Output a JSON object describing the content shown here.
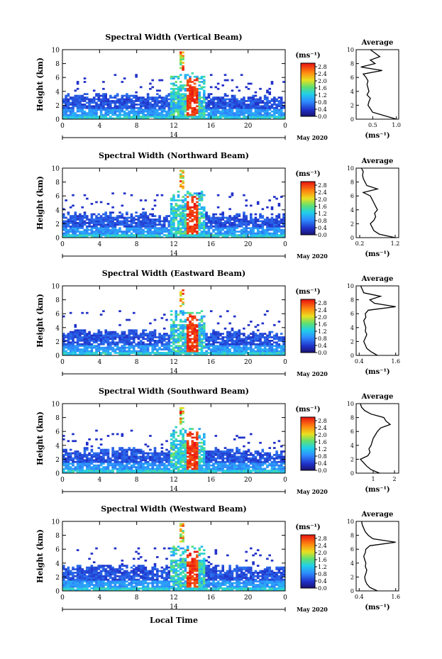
{
  "figure": {
    "xlabel": "Local Time",
    "date_label": "May 2020",
    "day_label": "14",
    "avg_title": "Average",
    "avg_xlabel": "(ms⁻¹)",
    "cbar_unit": "(ms⁻¹)"
  },
  "chart_data": [
    {
      "type": "heatmap",
      "title": "Spectral Width (Vertical Beam)",
      "ylabel": "Height (km)",
      "xlabel": "Local Time",
      "x_ticks": [
        "0",
        "4",
        "8",
        "12",
        "16",
        "20",
        "0"
      ],
      "y_ticks": [
        "0",
        "2",
        "4",
        "6",
        "8",
        "10"
      ],
      "xlim": [
        0,
        24
      ],
      "ylim": [
        0,
        10
      ],
      "colorbar": {
        "label": "(ms⁻¹)",
        "ticks": [
          "0.0",
          "0.4",
          "0.8",
          "1.2",
          "1.6",
          "2.0",
          "2.4",
          "2.8"
        ],
        "range": [
          0,
          3.0
        ]
      },
      "profile": {
        "title": "Average",
        "xlabel": "(ms⁻¹)",
        "x_ticks": [
          "0.5",
          "1.0"
        ],
        "x_tick_values": [
          0.5,
          1.0
        ],
        "xlim": [
          0.15,
          1.05
        ],
        "y_ticks": [
          "0",
          "2",
          "4",
          "6",
          "8",
          "10"
        ],
        "heights": [
          0.0,
          0.5,
          1.0,
          1.5,
          2.0,
          2.5,
          3.0,
          3.5,
          4.0,
          4.5,
          5.0,
          5.5,
          6.0,
          6.5,
          7.0,
          7.5,
          8.0,
          8.5,
          9.0,
          9.5,
          10.0
        ],
        "values": [
          1.0,
          0.75,
          0.5,
          0.45,
          0.4,
          0.42,
          0.45,
          0.38,
          0.42,
          0.4,
          0.38,
          0.4,
          0.36,
          0.3,
          0.7,
          0.25,
          0.55,
          0.45,
          0.65,
          0.55,
          0.45
        ]
      }
    },
    {
      "type": "heatmap",
      "title": "Spectral Width (Northward Beam)",
      "ylabel": "Height (km)",
      "xlabel": "Local Time",
      "x_ticks": [
        "0",
        "4",
        "8",
        "12",
        "16",
        "20",
        "0"
      ],
      "y_ticks": [
        "0",
        "2",
        "4",
        "6",
        "8",
        "10"
      ],
      "xlim": [
        0,
        24
      ],
      "ylim": [
        0,
        10
      ],
      "colorbar": {
        "label": "(ms⁻¹)",
        "ticks": [
          "0.0",
          "0.4",
          "0.8",
          "1.2",
          "1.6",
          "2.0",
          "2.4",
          "2.8"
        ],
        "range": [
          0,
          3.0
        ]
      },
      "profile": {
        "title": "Average",
        "xlabel": "(ms⁻¹)",
        "x_ticks": [
          "0.2",
          "1.2"
        ],
        "x_tick_values": [
          0.2,
          1.2
        ],
        "xlim": [
          0.1,
          1.3
        ],
        "y_ticks": [
          "0",
          "2",
          "4",
          "6",
          "8",
          "10"
        ],
        "heights": [
          0.0,
          0.5,
          1.0,
          1.5,
          2.0,
          2.5,
          3.0,
          3.5,
          4.0,
          4.5,
          5.0,
          5.5,
          6.0,
          6.5,
          7.0,
          7.5,
          8.0,
          8.5,
          9.0,
          9.5,
          10.0
        ],
        "values": [
          1.2,
          0.75,
          0.6,
          0.55,
          0.5,
          0.6,
          0.65,
          0.62,
          0.7,
          0.65,
          0.6,
          0.55,
          0.5,
          0.3,
          0.7,
          0.4,
          0.35,
          0.3,
          0.28,
          0.3,
          0.25
        ]
      }
    },
    {
      "type": "heatmap",
      "title": "Spectral Width (Eastward Beam)",
      "ylabel": "Height (km)",
      "xlabel": "Local Time",
      "x_ticks": [
        "0",
        "4",
        "8",
        "12",
        "16",
        "20",
        "0"
      ],
      "y_ticks": [
        "0",
        "2",
        "4",
        "6",
        "8",
        "10"
      ],
      "xlim": [
        0,
        24
      ],
      "ylim": [
        0,
        10
      ],
      "colorbar": {
        "label": "(ms⁻¹)",
        "ticks": [
          "0.0",
          "0.4",
          "0.8",
          "1.2",
          "1.6",
          "2.0",
          "2.4",
          "2.8"
        ],
        "range": [
          0,
          3.0
        ]
      },
      "profile": {
        "title": "Average",
        "xlabel": "(ms⁻¹)",
        "x_ticks": [
          "0.4",
          "1.6"
        ],
        "x_tick_values": [
          0.4,
          1.6
        ],
        "xlim": [
          0.3,
          1.7
        ],
        "y_ticks": [
          "0",
          "2",
          "4",
          "6",
          "8",
          "10"
        ],
        "heights": [
          0.0,
          0.5,
          1.0,
          1.5,
          2.0,
          2.5,
          3.0,
          3.5,
          4.0,
          4.5,
          5.0,
          5.5,
          6.0,
          6.5,
          7.0,
          7.5,
          8.0,
          8.5,
          9.0,
          9.5,
          10.0
        ],
        "values": [
          1.0,
          0.8,
          0.65,
          0.6,
          0.55,
          0.6,
          0.65,
          0.6,
          0.62,
          0.58,
          0.55,
          0.62,
          0.6,
          0.7,
          1.6,
          0.9,
          0.75,
          1.1,
          0.55,
          0.5,
          0.45
        ]
      }
    },
    {
      "type": "heatmap",
      "title": "Spectral Width (Southward Beam)",
      "ylabel": "Height (km)",
      "xlabel": "Local Time",
      "x_ticks": [
        "0",
        "4",
        "8",
        "12",
        "16",
        "20",
        "0"
      ],
      "y_ticks": [
        "0",
        "2",
        "4",
        "6",
        "8",
        "10"
      ],
      "xlim": [
        0,
        24
      ],
      "ylim": [
        0,
        10
      ],
      "colorbar": {
        "label": "(ms⁻¹)",
        "ticks": [
          "0.0",
          "0.4",
          "0.8",
          "1.2",
          "1.6",
          "2.0",
          "2.4",
          "2.8"
        ],
        "range": [
          0,
          3.0
        ]
      },
      "profile": {
        "title": "Average",
        "xlabel": "(ms⁻¹)",
        "x_ticks": [
          "1",
          "2"
        ],
        "x_tick_values": [
          1,
          2
        ],
        "xlim": [
          0.2,
          2.2
        ],
        "y_ticks": [
          "0",
          "2",
          "4",
          "6",
          "8",
          "10"
        ],
        "heights": [
          0.0,
          0.5,
          1.0,
          1.5,
          2.0,
          2.5,
          3.0,
          3.5,
          4.0,
          4.5,
          5.0,
          5.5,
          6.0,
          6.5,
          7.0,
          7.5,
          8.0,
          8.5,
          9.0,
          9.5,
          10.0
        ],
        "values": [
          1.3,
          0.9,
          0.7,
          0.55,
          0.4,
          0.75,
          0.85,
          0.8,
          0.9,
          0.95,
          1.0,
          1.1,
          1.2,
          1.35,
          1.8,
          1.6,
          1.5,
          0.9,
          0.6,
          0.45,
          0.4
        ]
      }
    },
    {
      "type": "heatmap",
      "title": "Spectral Width (Westward Beam)",
      "ylabel": "Height (km)",
      "xlabel": "Local Time",
      "x_ticks": [
        "0",
        "4",
        "8",
        "12",
        "16",
        "20",
        "0"
      ],
      "y_ticks": [
        "0",
        "2",
        "4",
        "6",
        "8",
        "10"
      ],
      "xlim": [
        0,
        24
      ],
      "ylim": [
        0,
        10
      ],
      "colorbar": {
        "label": "(ms⁻¹)",
        "ticks": [
          "0.0",
          "0.4",
          "0.8",
          "1.2",
          "1.6",
          "2.0",
          "2.4",
          "2.8"
        ],
        "range": [
          0,
          3.0
        ]
      },
      "profile": {
        "title": "Average",
        "xlabel": "(ms⁻¹)",
        "x_ticks": [
          "0.4",
          "1.6"
        ],
        "x_tick_values": [
          0.4,
          1.6
        ],
        "xlim": [
          0.3,
          1.7
        ],
        "y_ticks": [
          "0",
          "2",
          "4",
          "6",
          "8",
          "10"
        ],
        "heights": [
          0.0,
          0.5,
          1.0,
          1.5,
          2.0,
          2.5,
          3.0,
          3.5,
          4.0,
          4.5,
          5.0,
          5.5,
          6.0,
          6.5,
          7.0,
          7.5,
          8.0,
          8.5,
          9.0,
          9.5,
          10.0
        ],
        "values": [
          1.0,
          0.75,
          0.65,
          0.6,
          0.58,
          0.62,
          0.65,
          0.6,
          0.62,
          0.58,
          0.55,
          0.6,
          0.62,
          0.75,
          1.6,
          0.85,
          0.7,
          0.6,
          0.55,
          0.5,
          0.48
        ]
      }
    }
  ]
}
